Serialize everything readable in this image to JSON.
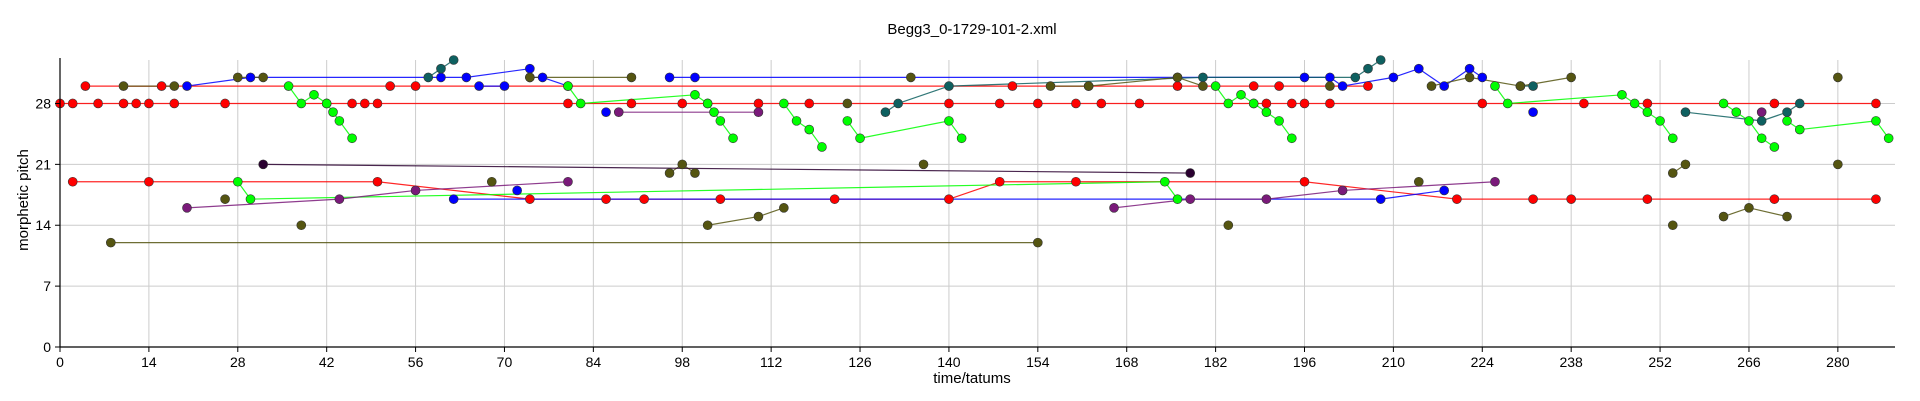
{
  "chart_data": {
    "type": "scatter",
    "title": "Begg3_0-1729-101-2.xml",
    "xlabel": "time/tatums",
    "ylabel": "morphetic pitch",
    "xlim": [
      0,
      289
    ],
    "ylim": [
      0,
      33
    ],
    "x_ticks": [
      0,
      14,
      28,
      42,
      56,
      70,
      84,
      98,
      112,
      126,
      140,
      154,
      168,
      182,
      196,
      210,
      224,
      238,
      252,
      266,
      280
    ],
    "y_ticks": [
      0,
      7,
      14,
      21,
      28
    ],
    "grid": true,
    "series": [
      {
        "color": "#ff0000",
        "points": [
          [
            0,
            28
          ],
          [
            2,
            28
          ],
          [
            6,
            28
          ],
          [
            10,
            28
          ],
          [
            12,
            28
          ],
          [
            14,
            28
          ],
          [
            18,
            28
          ],
          [
            26,
            28
          ],
          [
            42,
            28
          ],
          [
            46,
            28
          ],
          [
            48,
            28
          ],
          [
            50,
            28
          ],
          [
            80,
            28
          ],
          [
            90,
            28
          ],
          [
            98,
            28
          ],
          [
            102,
            28
          ],
          [
            110,
            28
          ],
          [
            118,
            28
          ],
          [
            140,
            28
          ],
          [
            148,
            28
          ],
          [
            154,
            28
          ],
          [
            160,
            28
          ],
          [
            164,
            28
          ],
          [
            170,
            28
          ],
          [
            188,
            28
          ],
          [
            190,
            28
          ],
          [
            194,
            28
          ],
          [
            196,
            28
          ],
          [
            200,
            28
          ],
          [
            224,
            28
          ],
          [
            240,
            28
          ],
          [
            250,
            28
          ],
          [
            270,
            28
          ],
          [
            286,
            28
          ],
          [
            4,
            30
          ],
          [
            16,
            30
          ],
          [
            52,
            30
          ],
          [
            56,
            30
          ],
          [
            150,
            30
          ],
          [
            162,
            30
          ],
          [
            176,
            30
          ],
          [
            188,
            30
          ],
          [
            192,
            30
          ],
          [
            206,
            30
          ],
          [
            2,
            19
          ],
          [
            14,
            19
          ],
          [
            50,
            19
          ],
          [
            74,
            17
          ],
          [
            86,
            17
          ],
          [
            92,
            17
          ],
          [
            104,
            17
          ],
          [
            122,
            17
          ],
          [
            140,
            17
          ],
          [
            148,
            19
          ],
          [
            160,
            19
          ],
          [
            196,
            19
          ],
          [
            220,
            17
          ],
          [
            232,
            17
          ],
          [
            238,
            17
          ],
          [
            250,
            17
          ],
          [
            270,
            17
          ],
          [
            286,
            17
          ]
        ]
      },
      {
        "color": "#0000ff",
        "points": [
          [
            20,
            30
          ],
          [
            30,
            31
          ],
          [
            60,
            31
          ],
          [
            64,
            31
          ],
          [
            74,
            32
          ],
          [
            74,
            31
          ],
          [
            76,
            31
          ],
          [
            80,
            30
          ],
          [
            86,
            27
          ],
          [
            96,
            31
          ],
          [
            100,
            31
          ],
          [
            176,
            31
          ],
          [
            196,
            31
          ],
          [
            200,
            31
          ],
          [
            202,
            30
          ],
          [
            210,
            31
          ],
          [
            214,
            32
          ],
          [
            218,
            30
          ],
          [
            222,
            32
          ],
          [
            224,
            31
          ],
          [
            232,
            27
          ],
          [
            66,
            30
          ],
          [
            70,
            30
          ],
          [
            72,
            18
          ],
          [
            62,
            17
          ],
          [
            208,
            17
          ],
          [
            218,
            18
          ]
        ]
      },
      {
        "color": "#00ff00",
        "points": [
          [
            36,
            30
          ],
          [
            38,
            28
          ],
          [
            40,
            29
          ],
          [
            42,
            28
          ],
          [
            43,
            27
          ],
          [
            44,
            26
          ],
          [
            46,
            24
          ],
          [
            80,
            30
          ],
          [
            82,
            28
          ],
          [
            100,
            29
          ],
          [
            102,
            28
          ],
          [
            103,
            27
          ],
          [
            104,
            26
          ],
          [
            106,
            24
          ],
          [
            114,
            28
          ],
          [
            116,
            26
          ],
          [
            118,
            25
          ],
          [
            120,
            23
          ],
          [
            124,
            26
          ],
          [
            126,
            24
          ],
          [
            140,
            26
          ],
          [
            142,
            24
          ],
          [
            182,
            30
          ],
          [
            184,
            28
          ],
          [
            186,
            29
          ],
          [
            188,
            28
          ],
          [
            190,
            27
          ],
          [
            192,
            26
          ],
          [
            194,
            24
          ],
          [
            226,
            30
          ],
          [
            228,
            28
          ],
          [
            246,
            29
          ],
          [
            248,
            28
          ],
          [
            250,
            27
          ],
          [
            252,
            26
          ],
          [
            254,
            24
          ],
          [
            262,
            28
          ],
          [
            264,
            27
          ],
          [
            266,
            26
          ],
          [
            268,
            24
          ],
          [
            270,
            23
          ],
          [
            272,
            26
          ],
          [
            274,
            25
          ],
          [
            286,
            26
          ],
          [
            288,
            24
          ],
          [
            28,
            19
          ],
          [
            30,
            17
          ],
          [
            174,
            19
          ],
          [
            176,
            17
          ]
        ]
      },
      {
        "color": "#0e6060",
        "points": [
          [
            58,
            31
          ],
          [
            60,
            32
          ],
          [
            62,
            33
          ],
          [
            130,
            27
          ],
          [
            132,
            28
          ],
          [
            140,
            30
          ],
          [
            180,
            31
          ],
          [
            204,
            31
          ],
          [
            206,
            32
          ],
          [
            208,
            33
          ],
          [
            230,
            30
          ],
          [
            232,
            30
          ],
          [
            256,
            27
          ],
          [
            268,
            26
          ],
          [
            272,
            27
          ],
          [
            274,
            28
          ]
        ]
      },
      {
        "color": "#555511",
        "points": [
          [
            28,
            31
          ],
          [
            32,
            31
          ],
          [
            10,
            30
          ],
          [
            18,
            30
          ],
          [
            26,
            17
          ],
          [
            38,
            14
          ],
          [
            68,
            19
          ],
          [
            74,
            31
          ],
          [
            90,
            31
          ],
          [
            96,
            20
          ],
          [
            98,
            21
          ],
          [
            100,
            20
          ],
          [
            102,
            14
          ],
          [
            110,
            15
          ],
          [
            114,
            16
          ],
          [
            124,
            28
          ],
          [
            134,
            31
          ],
          [
            136,
            21
          ],
          [
            156,
            30
          ],
          [
            162,
            30
          ],
          [
            176,
            31
          ],
          [
            180,
            30
          ],
          [
            184,
            14
          ],
          [
            200,
            30
          ],
          [
            214,
            19
          ],
          [
            216,
            30
          ],
          [
            222,
            31
          ],
          [
            230,
            30
          ],
          [
            238,
            31
          ],
          [
            254,
            14
          ],
          [
            254,
            20
          ],
          [
            256,
            21
          ],
          [
            262,
            15
          ],
          [
            266,
            16
          ],
          [
            272,
            15
          ],
          [
            280,
            31
          ],
          [
            280,
            21
          ],
          [
            8,
            12
          ],
          [
            154,
            12
          ]
        ]
      },
      {
        "color": "#7a1a7a",
        "points": [
          [
            20,
            16
          ],
          [
            44,
            17
          ],
          [
            56,
            18
          ],
          [
            80,
            19
          ],
          [
            88,
            27
          ],
          [
            110,
            27
          ],
          [
            166,
            16
          ],
          [
            178,
            17
          ],
          [
            190,
            17
          ],
          [
            202,
            18
          ],
          [
            226,
            19
          ],
          [
            268,
            27
          ]
        ]
      },
      {
        "color": "#2a0030",
        "points": [
          [
            32,
            21
          ],
          [
            178,
            20
          ]
        ]
      }
    ]
  }
}
